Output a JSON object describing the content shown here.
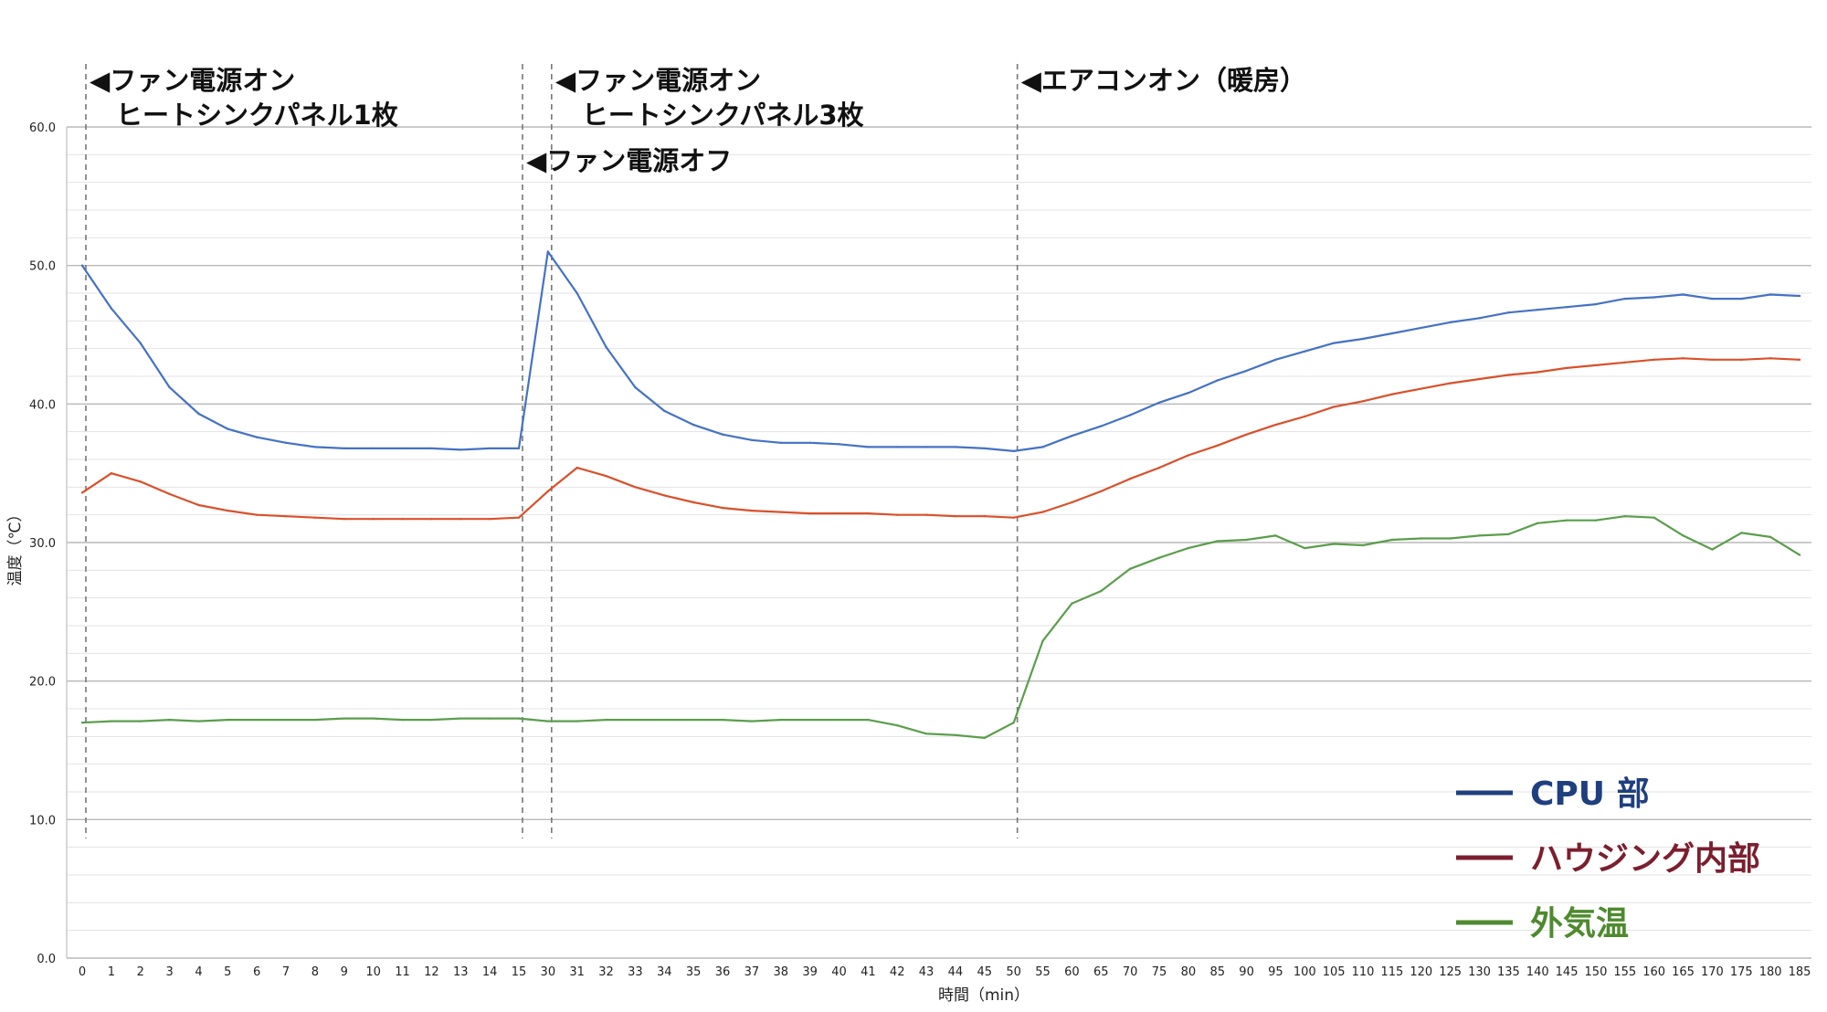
{
  "chart_data": {
    "type": "line",
    "title": "",
    "xlabel": "時間（min）",
    "ylabel": "温度（℃）",
    "ylim": [
      0,
      60
    ],
    "y_ticks": [
      "0.0",
      "10.0",
      "20.0",
      "30.0",
      "40.0",
      "50.0",
      "60.0"
    ],
    "grid": true,
    "legend_position": "bottom-right",
    "categories": [
      "0",
      "1",
      "2",
      "3",
      "4",
      "5",
      "6",
      "7",
      "8",
      "9",
      "10",
      "11",
      "12",
      "13",
      "14",
      "15",
      "30",
      "31",
      "32",
      "33",
      "34",
      "35",
      "36",
      "37",
      "38",
      "39",
      "40",
      "41",
      "42",
      "43",
      "44",
      "45",
      "50",
      "55",
      "60",
      "65",
      "70",
      "75",
      "80",
      "85",
      "90",
      "95",
      "100",
      "105",
      "110",
      "115",
      "120",
      "125",
      "130",
      "135",
      "140",
      "145",
      "150",
      "155",
      "160",
      "165",
      "170",
      "175",
      "180",
      "185"
    ],
    "series": [
      {
        "name": "CPU 部",
        "color": "#4472C4",
        "legend_color": "#1F3F7F",
        "values": [
          50.0,
          46.9,
          44.4,
          41.2,
          39.3,
          38.2,
          37.6,
          37.2,
          36.9,
          36.8,
          36.8,
          36.8,
          36.8,
          36.7,
          36.8,
          36.8,
          51.0,
          48.0,
          44.1,
          41.2,
          39.5,
          38.5,
          37.8,
          37.4,
          37.2,
          37.2,
          37.1,
          36.9,
          36.9,
          36.9,
          36.9,
          36.8,
          36.6,
          36.9,
          37.7,
          38.4,
          39.2,
          40.1,
          40.8,
          41.7,
          42.4,
          43.2,
          43.8,
          44.4,
          44.7,
          45.1,
          45.5,
          45.9,
          46.2,
          46.6,
          46.8,
          47.0,
          47.2,
          47.6,
          47.7,
          47.9,
          47.6,
          47.6,
          47.9,
          47.8
        ]
      },
      {
        "name": "ハウジング内部",
        "color": "#D9502A",
        "legend_color": "#7B1F2F",
        "values": [
          33.6,
          35.0,
          34.4,
          33.5,
          32.7,
          32.3,
          32.0,
          31.9,
          31.8,
          31.7,
          31.7,
          31.7,
          31.7,
          31.7,
          31.7,
          31.8,
          33.7,
          35.4,
          34.8,
          34.0,
          33.4,
          32.9,
          32.5,
          32.3,
          32.2,
          32.1,
          32.1,
          32.1,
          32.0,
          32.0,
          31.9,
          31.9,
          31.8,
          32.2,
          32.9,
          33.7,
          34.6,
          35.4,
          36.3,
          37.0,
          37.8,
          38.5,
          39.1,
          39.8,
          40.2,
          40.7,
          41.1,
          41.5,
          41.8,
          42.1,
          42.3,
          42.6,
          42.8,
          43.0,
          43.2,
          43.3,
          43.2,
          43.2,
          43.3,
          43.2
        ]
      },
      {
        "name": "外気温",
        "color": "#5A9E4B",
        "legend_color": "#4E8A2E",
        "values": [
          17.0,
          17.1,
          17.1,
          17.2,
          17.1,
          17.2,
          17.2,
          17.2,
          17.2,
          17.3,
          17.3,
          17.2,
          17.2,
          17.3,
          17.3,
          17.3,
          17.1,
          17.1,
          17.2,
          17.2,
          17.2,
          17.2,
          17.2,
          17.1,
          17.2,
          17.2,
          17.2,
          17.2,
          16.8,
          16.2,
          16.1,
          15.9,
          17.0,
          22.9,
          25.6,
          26.5,
          28.1,
          28.9,
          29.6,
          30.1,
          30.2,
          30.5,
          29.6,
          29.9,
          29.8,
          30.2,
          30.3,
          30.3,
          30.5,
          30.6,
          31.4,
          31.6,
          31.6,
          31.9,
          31.8,
          30.5,
          29.5,
          30.7,
          30.4,
          29.1
        ]
      }
    ],
    "annotations": [
      {
        "at_index": 0,
        "lines": [
          "◀ファン電源オン",
          "　ヒートシンクパネル1枚"
        ]
      },
      {
        "at_index": 15,
        "lines": [
          "◀ファン電源オフ"
        ]
      },
      {
        "at_index": 16,
        "lines": [
          "◀ファン電源オン",
          "　ヒートシンクパネル3枚"
        ]
      },
      {
        "at_index": 32,
        "lines": [
          "◀エアコンオン（暖房）"
        ]
      }
    ]
  }
}
